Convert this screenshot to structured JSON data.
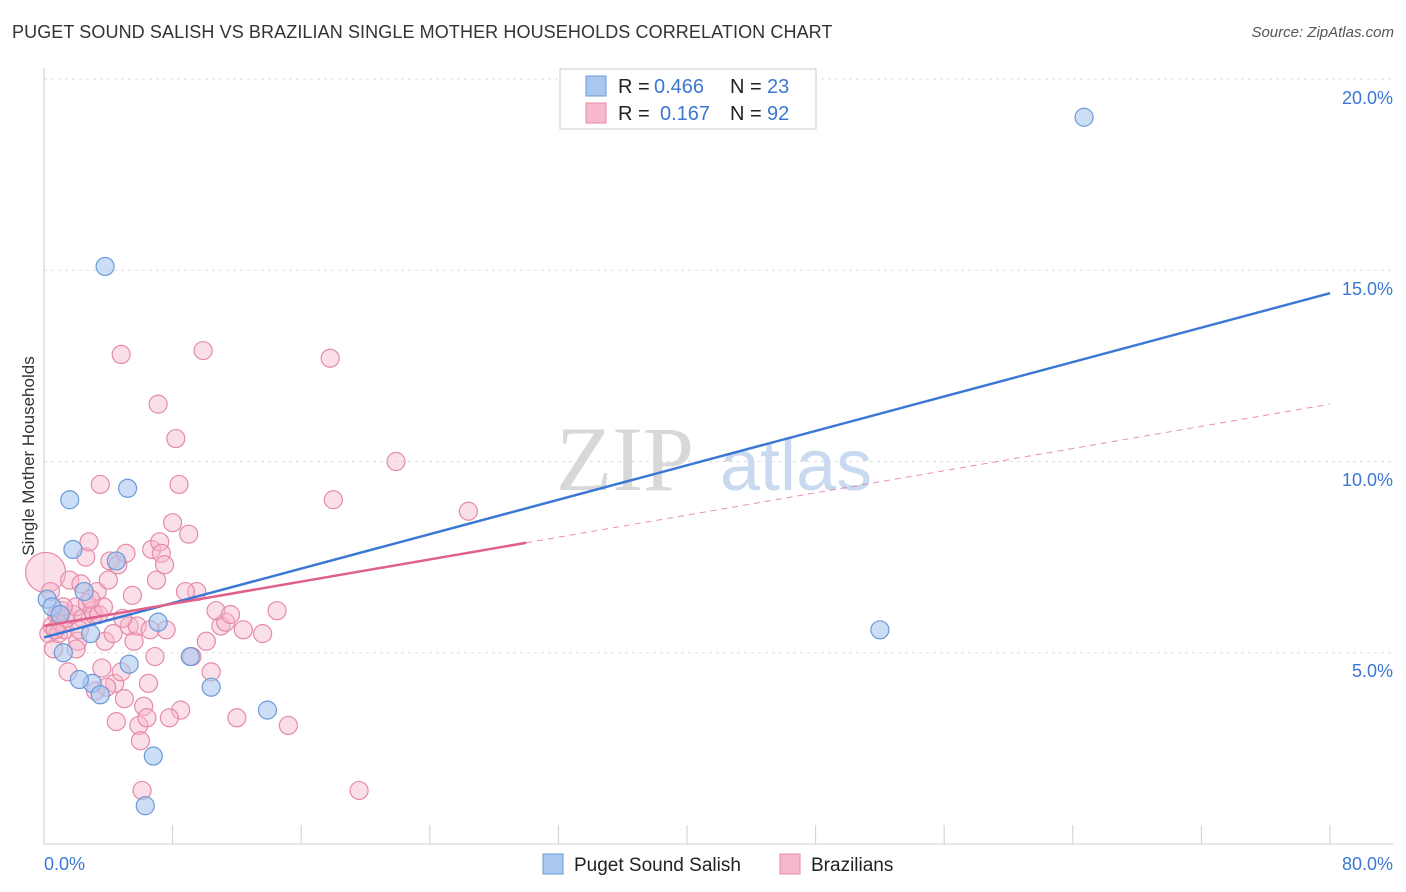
{
  "header": {
    "title": "PUGET SOUND SALISH VS BRAZILIAN SINGLE MOTHER HOUSEHOLDS CORRELATION CHART",
    "source": "Source: ZipAtlas.com"
  },
  "watermark": {
    "zip": "ZIP",
    "atlas": "atlas"
  },
  "colors": {
    "blue_fill": "#a9c8f0",
    "blue_stroke": "#6a9ad8",
    "blue_line": "#3b78d4",
    "pink_fill": "#f6b9cb",
    "pink_stroke": "#e58aa8",
    "pink_line": "#e0608a",
    "grid": "#dddddd",
    "axis_text": "#3b78d4"
  },
  "legend": {
    "rows": [
      {
        "r_label": "R = ",
        "r_value": "0.466",
        "n_label": "N = ",
        "n_value": "23"
      },
      {
        "r_label": "R = ",
        "r_value": "0.167",
        "n_label": "N = ",
        "n_value": "92"
      }
    ]
  },
  "chart_data": {
    "type": "scatter",
    "title": "PUGET SOUND SALISH VS BRAZILIAN SINGLE MOTHER HOUSEHOLDS CORRELATION CHART",
    "ylabel": "Single Mother Households",
    "xlabel": "",
    "xlim": [
      0,
      80
    ],
    "ylim": [
      0,
      20
    ],
    "x_tick_labels": [
      "0.0%",
      "80.0%"
    ],
    "y_ticks": [
      5,
      10,
      15,
      20
    ],
    "y_tick_labels": [
      "5.0%",
      "10.0%",
      "15.0%",
      "20.0%"
    ],
    "series": [
      {
        "name": "Puget Sound Salish",
        "trend": {
          "x0": 0,
          "y0": 5.4,
          "x1": 80,
          "y1": 14.4,
          "dashed_from": null
        },
        "points": [
          [
            0.2,
            6.4
          ],
          [
            0.5,
            6.2
          ],
          [
            1.2,
            5.0
          ],
          [
            1.6,
            9.0
          ],
          [
            1.8,
            7.7
          ],
          [
            2.5,
            6.6
          ],
          [
            2.9,
            5.5
          ],
          [
            3.0,
            4.2
          ],
          [
            2.2,
            4.3
          ],
          [
            3.5,
            3.9
          ],
          [
            4.5,
            7.4
          ],
          [
            3.8,
            15.1
          ],
          [
            5.2,
            9.3
          ],
          [
            5.3,
            4.7
          ],
          [
            7.1,
            5.8
          ],
          [
            6.8,
            2.3
          ],
          [
            6.3,
            1.0
          ],
          [
            9.1,
            4.9
          ],
          [
            10.4,
            4.1
          ],
          [
            13.9,
            3.5
          ],
          [
            52.0,
            5.6
          ],
          [
            64.7,
            19.0
          ],
          [
            1.0,
            6.0
          ]
        ]
      },
      {
        "name": "Brazilians",
        "trend": {
          "x0": 0,
          "y0": 5.7,
          "x1": 80,
          "y1": 11.5,
          "dashed_from": 30
        },
        "points": [
          [
            0.1,
            7.1
          ],
          [
            0.3,
            5.5
          ],
          [
            0.5,
            5.7
          ],
          [
            0.6,
            5.1
          ],
          [
            0.8,
            6.0
          ],
          [
            0.9,
            5.5
          ],
          [
            1.0,
            5.8
          ],
          [
            1.1,
            6.1
          ],
          [
            1.3,
            5.6
          ],
          [
            1.4,
            5.9
          ],
          [
            1.6,
            6.9
          ],
          [
            1.8,
            6.0
          ],
          [
            2.0,
            6.2
          ],
          [
            2.1,
            5.3
          ],
          [
            2.3,
            6.8
          ],
          [
            2.4,
            5.9
          ],
          [
            2.6,
            7.5
          ],
          [
            2.7,
            6.3
          ],
          [
            2.8,
            7.9
          ],
          [
            3.0,
            6.1
          ],
          [
            3.1,
            6.0
          ],
          [
            3.3,
            6.6
          ],
          [
            3.4,
            6.0
          ],
          [
            3.5,
            9.4
          ],
          [
            3.7,
            6.2
          ],
          [
            3.8,
            5.3
          ],
          [
            4.0,
            6.9
          ],
          [
            4.1,
            7.4
          ],
          [
            4.3,
            5.5
          ],
          [
            4.4,
            4.2
          ],
          [
            4.6,
            7.3
          ],
          [
            4.8,
            4.5
          ],
          [
            5.0,
            3.8
          ],
          [
            5.1,
            7.6
          ],
          [
            5.3,
            5.7
          ],
          [
            5.5,
            6.5
          ],
          [
            5.6,
            5.3
          ],
          [
            5.9,
            3.1
          ],
          [
            6.0,
            2.7
          ],
          [
            6.2,
            3.6
          ],
          [
            6.4,
            3.3
          ],
          [
            6.5,
            4.2
          ],
          [
            6.7,
            7.7
          ],
          [
            6.9,
            4.9
          ],
          [
            7.0,
            6.9
          ],
          [
            7.2,
            7.9
          ],
          [
            7.3,
            7.6
          ],
          [
            7.5,
            7.3
          ],
          [
            7.6,
            5.6
          ],
          [
            8.0,
            8.4
          ],
          [
            8.2,
            10.6
          ],
          [
            8.4,
            9.4
          ],
          [
            8.5,
            3.5
          ],
          [
            9.0,
            8.1
          ],
          [
            9.2,
            4.9
          ],
          [
            9.5,
            6.6
          ],
          [
            10.1,
            5.3
          ],
          [
            10.4,
            4.5
          ],
          [
            11.0,
            5.7
          ],
          [
            11.3,
            5.8
          ],
          [
            12.0,
            3.3
          ],
          [
            12.4,
            5.6
          ],
          [
            13.6,
            5.5
          ],
          [
            14.5,
            6.1
          ],
          [
            15.2,
            3.1
          ],
          [
            17.8,
            12.7
          ],
          [
            18.0,
            9.0
          ],
          [
            19.6,
            1.4
          ],
          [
            21.9,
            10.0
          ],
          [
            26.4,
            8.7
          ],
          [
            7.1,
            11.5
          ],
          [
            9.9,
            12.9
          ],
          [
            4.8,
            12.8
          ],
          [
            2.0,
            5.1
          ],
          [
            1.5,
            4.5
          ],
          [
            3.2,
            4.0
          ],
          [
            7.8,
            3.3
          ],
          [
            6.1,
            1.4
          ],
          [
            4.5,
            3.2
          ],
          [
            3.9,
            4.1
          ],
          [
            2.9,
            6.4
          ],
          [
            1.2,
            6.2
          ],
          [
            0.4,
            6.6
          ],
          [
            0.7,
            5.6
          ],
          [
            2.2,
            5.6
          ],
          [
            5.8,
            5.7
          ],
          [
            8.8,
            6.6
          ],
          [
            10.7,
            6.1
          ],
          [
            11.6,
            6.0
          ],
          [
            6.6,
            5.6
          ],
          [
            3.6,
            4.6
          ],
          [
            4.9,
            5.9
          ]
        ]
      }
    ],
    "legend_position": "top-center"
  },
  "bottom_legend": {
    "items": [
      {
        "label": "Puget Sound Salish"
      },
      {
        "label": "Brazilians"
      }
    ]
  }
}
